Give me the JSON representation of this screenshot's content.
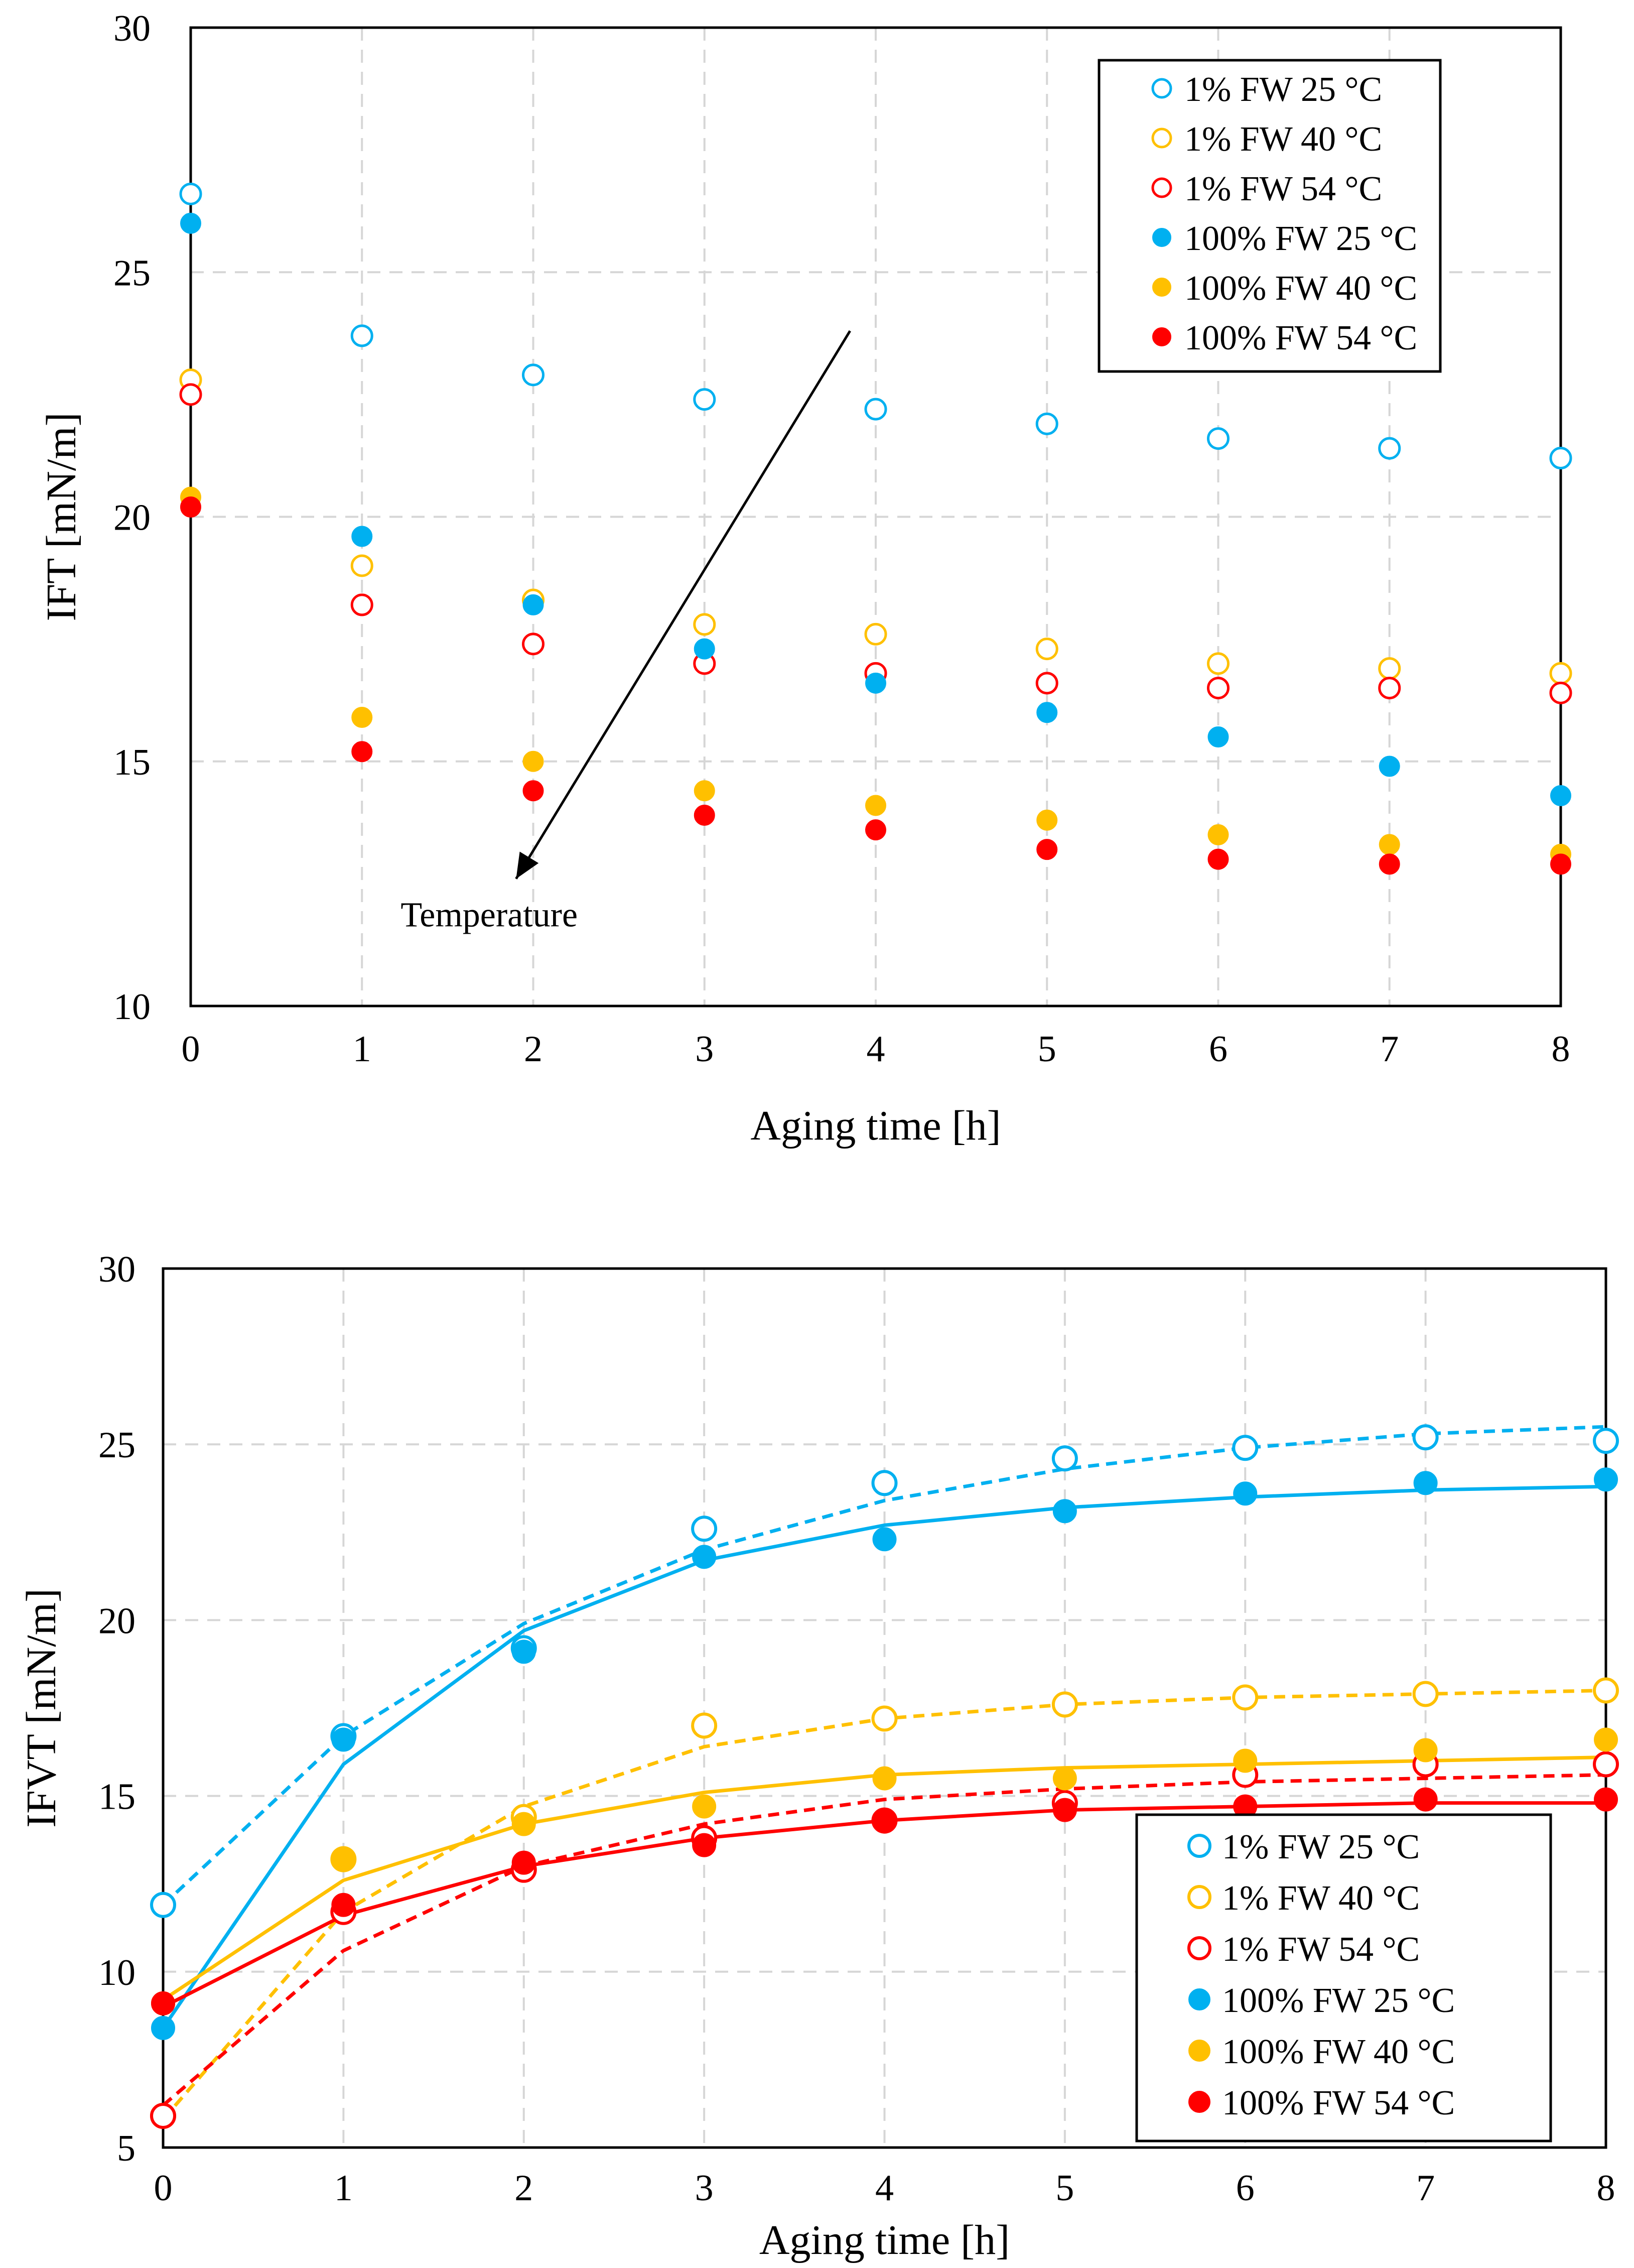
{
  "chart_data": [
    {
      "type": "scatter",
      "id": "top",
      "xlabel": "Aging time [h]",
      "ylabel": "IFT [mN/m]",
      "xlim": [
        0,
        8
      ],
      "ylim": [
        10,
        30
      ],
      "xticks": [
        "0",
        "1",
        "2",
        "3",
        "4",
        "5",
        "6",
        "7",
        "8"
      ],
      "yticks": [
        "10",
        "15",
        "20",
        "25",
        "30"
      ],
      "grid": true,
      "legend_position": "top-right",
      "annotation": {
        "text": "Temperature",
        "arrow_from": [
          3.85,
          23.8
        ],
        "arrow_to": [
          1.9,
          12.6
        ]
      },
      "x": [
        0,
        1,
        2,
        3,
        4,
        5,
        6,
        7,
        8
      ],
      "series": [
        {
          "name": "1% FW 25 °C",
          "color": "#00b0f0",
          "filled": false,
          "values": [
            26.6,
            23.7,
            22.9,
            22.4,
            22.2,
            21.9,
            21.6,
            21.4,
            21.2
          ]
        },
        {
          "name": "1% FW 40 °C",
          "color": "#ffc000",
          "filled": false,
          "values": [
            22.8,
            19.0,
            18.3,
            17.8,
            17.6,
            17.3,
            17.0,
            16.9,
            16.8
          ]
        },
        {
          "name": "1% FW 54 °C",
          "color": "#ff0000",
          "filled": false,
          "values": [
            22.5,
            18.2,
            17.4,
            17.0,
            16.8,
            16.6,
            16.5,
            16.5,
            16.4
          ]
        },
        {
          "name": "100% FW 25 °C",
          "color": "#00b0f0",
          "filled": true,
          "values": [
            26.0,
            19.6,
            18.2,
            17.3,
            16.6,
            16.0,
            15.5,
            14.9,
            14.3
          ]
        },
        {
          "name": "100% FW 40 °C",
          "color": "#ffc000",
          "filled": true,
          "values": [
            20.4,
            15.9,
            15.0,
            14.4,
            14.1,
            13.8,
            13.5,
            13.3,
            13.1
          ]
        },
        {
          "name": "100% FW 54 °C",
          "color": "#ff0000",
          "filled": true,
          "values": [
            20.2,
            15.2,
            14.4,
            13.9,
            13.6,
            13.2,
            13.0,
            12.9,
            12.9
          ]
        }
      ]
    },
    {
      "type": "scatter",
      "id": "bottom",
      "xlabel": "Aging time [h]",
      "ylabel": "IFVT [mN/m]",
      "xlim": [
        0,
        8
      ],
      "ylim": [
        5,
        30
      ],
      "xticks": [
        "0",
        "1",
        "2",
        "3",
        "4",
        "5",
        "6",
        "7",
        "8"
      ],
      "yticks": [
        "5",
        "10",
        "15",
        "20",
        "25",
        "30"
      ],
      "grid": true,
      "legend_position": "bottom-right",
      "x": [
        0,
        1,
        2,
        3,
        4,
        5,
        6,
        7,
        8
      ],
      "series": [
        {
          "name": "1% FW 25 °C",
          "color": "#00b0f0",
          "filled": false,
          "values": [
            11.9,
            16.7,
            19.2,
            22.6,
            23.9,
            24.6,
            24.9,
            25.2,
            25.1
          ],
          "fit": [
            11.9,
            16.7,
            19.9,
            22.0,
            23.4,
            24.3,
            24.9,
            25.3,
            25.5
          ],
          "fit_style": "dashed"
        },
        {
          "name": "1% FW 40 °C",
          "color": "#ffc000",
          "filled": false,
          "values": [
            5.9,
            13.2,
            14.4,
            17.0,
            17.2,
            17.6,
            17.8,
            17.9,
            18.0
          ],
          "fit": [
            5.8,
            11.7,
            14.7,
            16.4,
            17.2,
            17.6,
            17.8,
            17.9,
            18.0
          ],
          "fit_style": "dashed"
        },
        {
          "name": "1% FW 54 °C",
          "color": "#ff0000",
          "filled": false,
          "values": [
            5.9,
            11.7,
            12.9,
            13.8,
            14.3,
            14.8,
            15.6,
            15.9,
            15.9
          ],
          "fit": [
            6.2,
            10.6,
            13.0,
            14.2,
            14.9,
            15.2,
            15.4,
            15.5,
            15.6
          ],
          "fit_style": "dashed"
        },
        {
          "name": "100% FW 25 °C",
          "color": "#00b0f0",
          "filled": true,
          "values": [
            8.4,
            16.6,
            19.1,
            21.8,
            22.3,
            23.1,
            23.6,
            23.9,
            24.0
          ],
          "fit": [
            8.4,
            15.9,
            19.7,
            21.7,
            22.7,
            23.2,
            23.5,
            23.7,
            23.8
          ],
          "fit_style": "solid"
        },
        {
          "name": "100% FW 40 °C",
          "color": "#ffc000",
          "filled": true,
          "values": [
            9.1,
            13.2,
            14.2,
            14.7,
            15.5,
            15.5,
            16.0,
            16.3,
            16.6
          ],
          "fit": [
            9.2,
            12.6,
            14.2,
            15.1,
            15.6,
            15.8,
            15.9,
            16.0,
            16.1
          ],
          "fit_style": "solid"
        },
        {
          "name": "100% FW 54 °C",
          "color": "#ff0000",
          "filled": true,
          "values": [
            9.1,
            11.9,
            13.1,
            13.6,
            14.3,
            14.6,
            14.7,
            14.9,
            14.9
          ],
          "fit": [
            9.0,
            11.6,
            13.0,
            13.8,
            14.3,
            14.6,
            14.7,
            14.8,
            14.8
          ],
          "fit_style": "solid"
        }
      ]
    }
  ]
}
